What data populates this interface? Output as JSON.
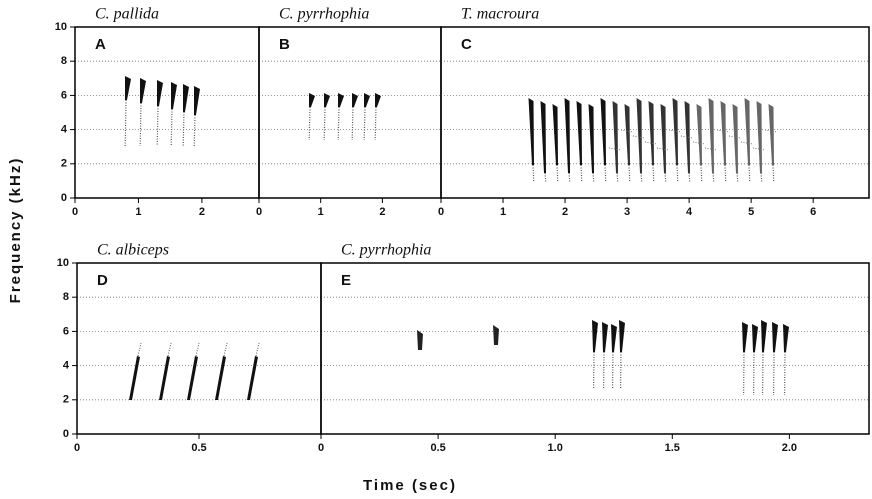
{
  "figure": {
    "y_label": "Frequency (kHz)",
    "x_label": "Time (sec)"
  },
  "chart_data": [
    {
      "type": "spectrogram",
      "title": "C. pallida",
      "label": "A",
      "xlim": [
        0,
        2.9
      ],
      "xticks": [
        0,
        1,
        2
      ],
      "ylim": [
        0,
        10
      ],
      "yticks": [
        0,
        2,
        4,
        6,
        8,
        10
      ]
    },
    {
      "type": "spectrogram",
      "title": "C. pyrrhophia",
      "label": "B",
      "xlim": [
        0,
        2.95
      ],
      "xticks": [
        0,
        1,
        2
      ],
      "ylim": [
        0,
        10
      ],
      "yticks": [
        0,
        2,
        4,
        6,
        8,
        10
      ]
    },
    {
      "type": "spectrogram",
      "title": "T. macroura",
      "label": "C",
      "xlim": [
        0,
        6.9
      ],
      "xticks": [
        0,
        1,
        2,
        3,
        4,
        5,
        6
      ],
      "ylim": [
        0,
        10
      ],
      "yticks": [
        0,
        2,
        4,
        6,
        8,
        10
      ]
    },
    {
      "type": "spectrogram",
      "title": "C. albiceps",
      "label": "D",
      "xlim": [
        0,
        1.0
      ],
      "xticks": [
        0,
        0.5
      ],
      "ylim": [
        0,
        10
      ],
      "yticks": [
        0,
        2,
        4,
        6,
        8,
        10
      ]
    },
    {
      "type": "spectrogram",
      "title": "C. pyrrhophia",
      "label": "E",
      "xlim": [
        0,
        2.34
      ],
      "xticks": [
        0,
        0.5,
        {
          "value": 1,
          "label": "1.0"
        },
        1.5,
        {
          "value": 2,
          "label": "2.0"
        }
      ],
      "ylim": [
        0,
        10
      ],
      "yticks": [
        0,
        2,
        4,
        6,
        8,
        10
      ]
    }
  ]
}
